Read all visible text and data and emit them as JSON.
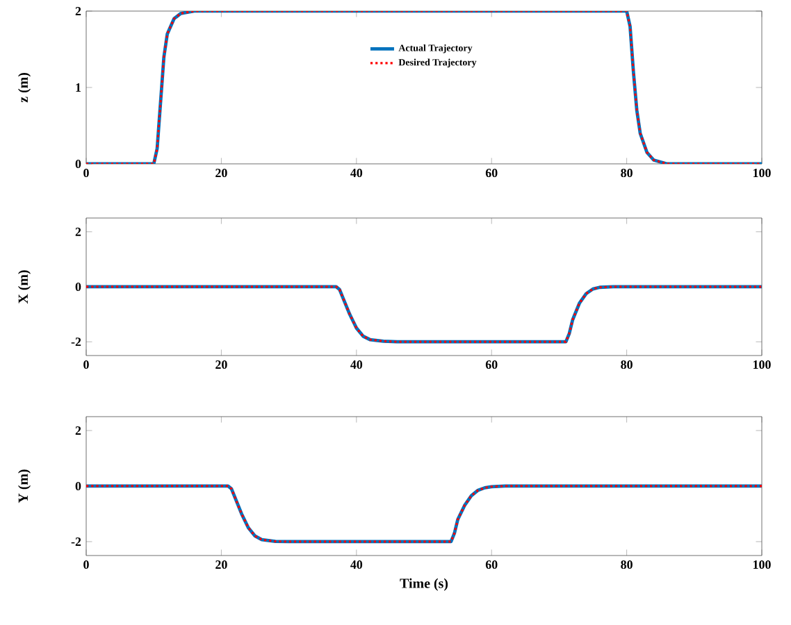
{
  "chart_data": [
    {
      "type": "line",
      "ylabel": "z (m)",
      "xlim": [
        0,
        100
      ],
      "xticks": [
        0,
        20,
        40,
        60,
        80,
        100
      ],
      "ylim": [
        0,
        2
      ],
      "yticks": [
        0,
        1,
        2
      ],
      "legend": "top",
      "x": [
        0,
        10,
        10.5,
        11,
        11.5,
        12,
        13,
        14,
        16,
        80,
        80.5,
        81,
        81.5,
        82,
        83,
        84,
        86,
        100
      ],
      "series": [
        {
          "name": "Actual Trajectory",
          "color": "#0072bd",
          "line_style": "solid",
          "values": [
            0,
            0,
            0.2,
            0.8,
            1.4,
            1.7,
            1.9,
            1.97,
            2,
            2,
            1.8,
            1.2,
            0.7,
            0.4,
            0.15,
            0.05,
            0,
            0
          ]
        },
        {
          "name": "Desired Trajectory",
          "color": "#ff0000",
          "line_style": "dotted",
          "values": [
            0,
            0,
            0.2,
            0.8,
            1.4,
            1.7,
            1.9,
            1.97,
            2,
            2,
            1.8,
            1.2,
            0.7,
            0.4,
            0.15,
            0.05,
            0,
            0
          ]
        }
      ]
    },
    {
      "type": "line",
      "ylabel": "X (m)",
      "xlim": [
        0,
        100
      ],
      "xticks": [
        0,
        20,
        40,
        60,
        80,
        100
      ],
      "ylim": [
        -2.5,
        2.5
      ],
      "yticks": [
        -2,
        0,
        2
      ],
      "x": [
        0,
        37,
        37.5,
        38,
        39,
        40,
        41,
        42,
        44,
        46,
        71,
        71.5,
        72,
        73,
        74,
        75,
        76,
        78,
        100
      ],
      "series": [
        {
          "color": "#0072bd",
          "line_style": "solid",
          "values": [
            0,
            0,
            -0.1,
            -0.4,
            -1.0,
            -1.5,
            -1.8,
            -1.92,
            -1.98,
            -2,
            -2,
            -1.7,
            -1.2,
            -0.6,
            -0.25,
            -0.08,
            -0.02,
            0,
            0
          ]
        },
        {
          "color": "#ff0000",
          "line_style": "dotted",
          "values": [
            0,
            0,
            -0.1,
            -0.4,
            -1.0,
            -1.5,
            -1.8,
            -1.92,
            -1.98,
            -2,
            -2,
            -1.7,
            -1.2,
            -0.6,
            -0.25,
            -0.08,
            -0.02,
            0,
            0
          ]
        }
      ]
    },
    {
      "type": "line",
      "ylabel": "Y (m)",
      "xlabel": "Time (s)",
      "xlim": [
        0,
        100
      ],
      "xticks": [
        0,
        20,
        40,
        60,
        80,
        100
      ],
      "ylim": [
        -2.5,
        2.5
      ],
      "yticks": [
        -2,
        0,
        2
      ],
      "x": [
        0,
        21,
        21.5,
        22,
        23,
        24,
        25,
        26,
        28,
        30,
        54,
        54.5,
        55,
        56,
        57,
        58,
        59,
        60,
        62,
        100
      ],
      "series": [
        {
          "color": "#0072bd",
          "line_style": "solid",
          "values": [
            0,
            0,
            -0.1,
            -0.4,
            -1.0,
            -1.5,
            -1.8,
            -1.93,
            -1.99,
            -2,
            -2,
            -1.7,
            -1.2,
            -0.7,
            -0.35,
            -0.15,
            -0.06,
            -0.02,
            0,
            0
          ]
        },
        {
          "color": "#ff0000",
          "line_style": "dotted",
          "values": [
            0,
            0,
            -0.1,
            -0.4,
            -1.0,
            -1.5,
            -1.8,
            -1.93,
            -1.99,
            -2,
            -2,
            -1.7,
            -1.2,
            -0.7,
            -0.35,
            -0.15,
            -0.06,
            -0.02,
            0,
            0
          ]
        }
      ]
    }
  ]
}
